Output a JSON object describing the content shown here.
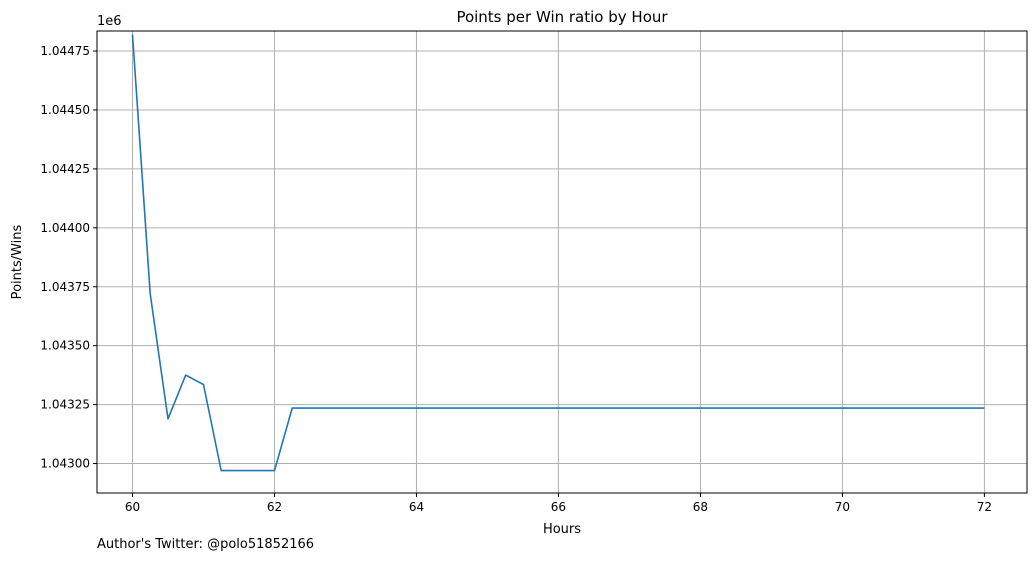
{
  "chart_data": {
    "type": "line",
    "title": "Points per Win ratio by Hour",
    "xlabel": "Hours",
    "ylabel": "Points/Wins",
    "y_offset_label": "1e6",
    "xlim": [
      59.5,
      72.6
    ],
    "ylim": [
      1042875,
      1044835
    ],
    "xticks": [
      60,
      62,
      64,
      66,
      68,
      70,
      72
    ],
    "xtick_labels": [
      "60",
      "62",
      "64",
      "66",
      "68",
      "70",
      "72"
    ],
    "yticks": [
      1043000,
      1043250,
      1043500,
      1043750,
      1044000,
      1044250,
      1044500,
      1044750
    ],
    "ytick_labels": [
      "1.04300",
      "1.04325",
      "1.04350",
      "1.04375",
      "1.04400",
      "1.04425",
      "1.04450",
      "1.04475"
    ],
    "grid": true,
    "color": "#1f77b4",
    "series": [
      {
        "x": [
          60.0,
          60.25,
          60.5,
          60.75,
          61.0,
          61.25,
          61.5,
          61.75,
          62.0,
          62.25,
          62.5,
          63,
          64,
          65,
          66,
          67,
          68,
          69,
          70,
          71,
          72
        ],
        "y": [
          1044820,
          1043720,
          1043190,
          1043375,
          1043335,
          1042970,
          1042970,
          1042970,
          1042970,
          1043235,
          1043235,
          1043235,
          1043235,
          1043235,
          1043235,
          1043235,
          1043235,
          1043235,
          1043235,
          1043235,
          1043235
        ]
      }
    ]
  },
  "footer": {
    "author_note": "Author's Twitter: @polo51852166"
  }
}
